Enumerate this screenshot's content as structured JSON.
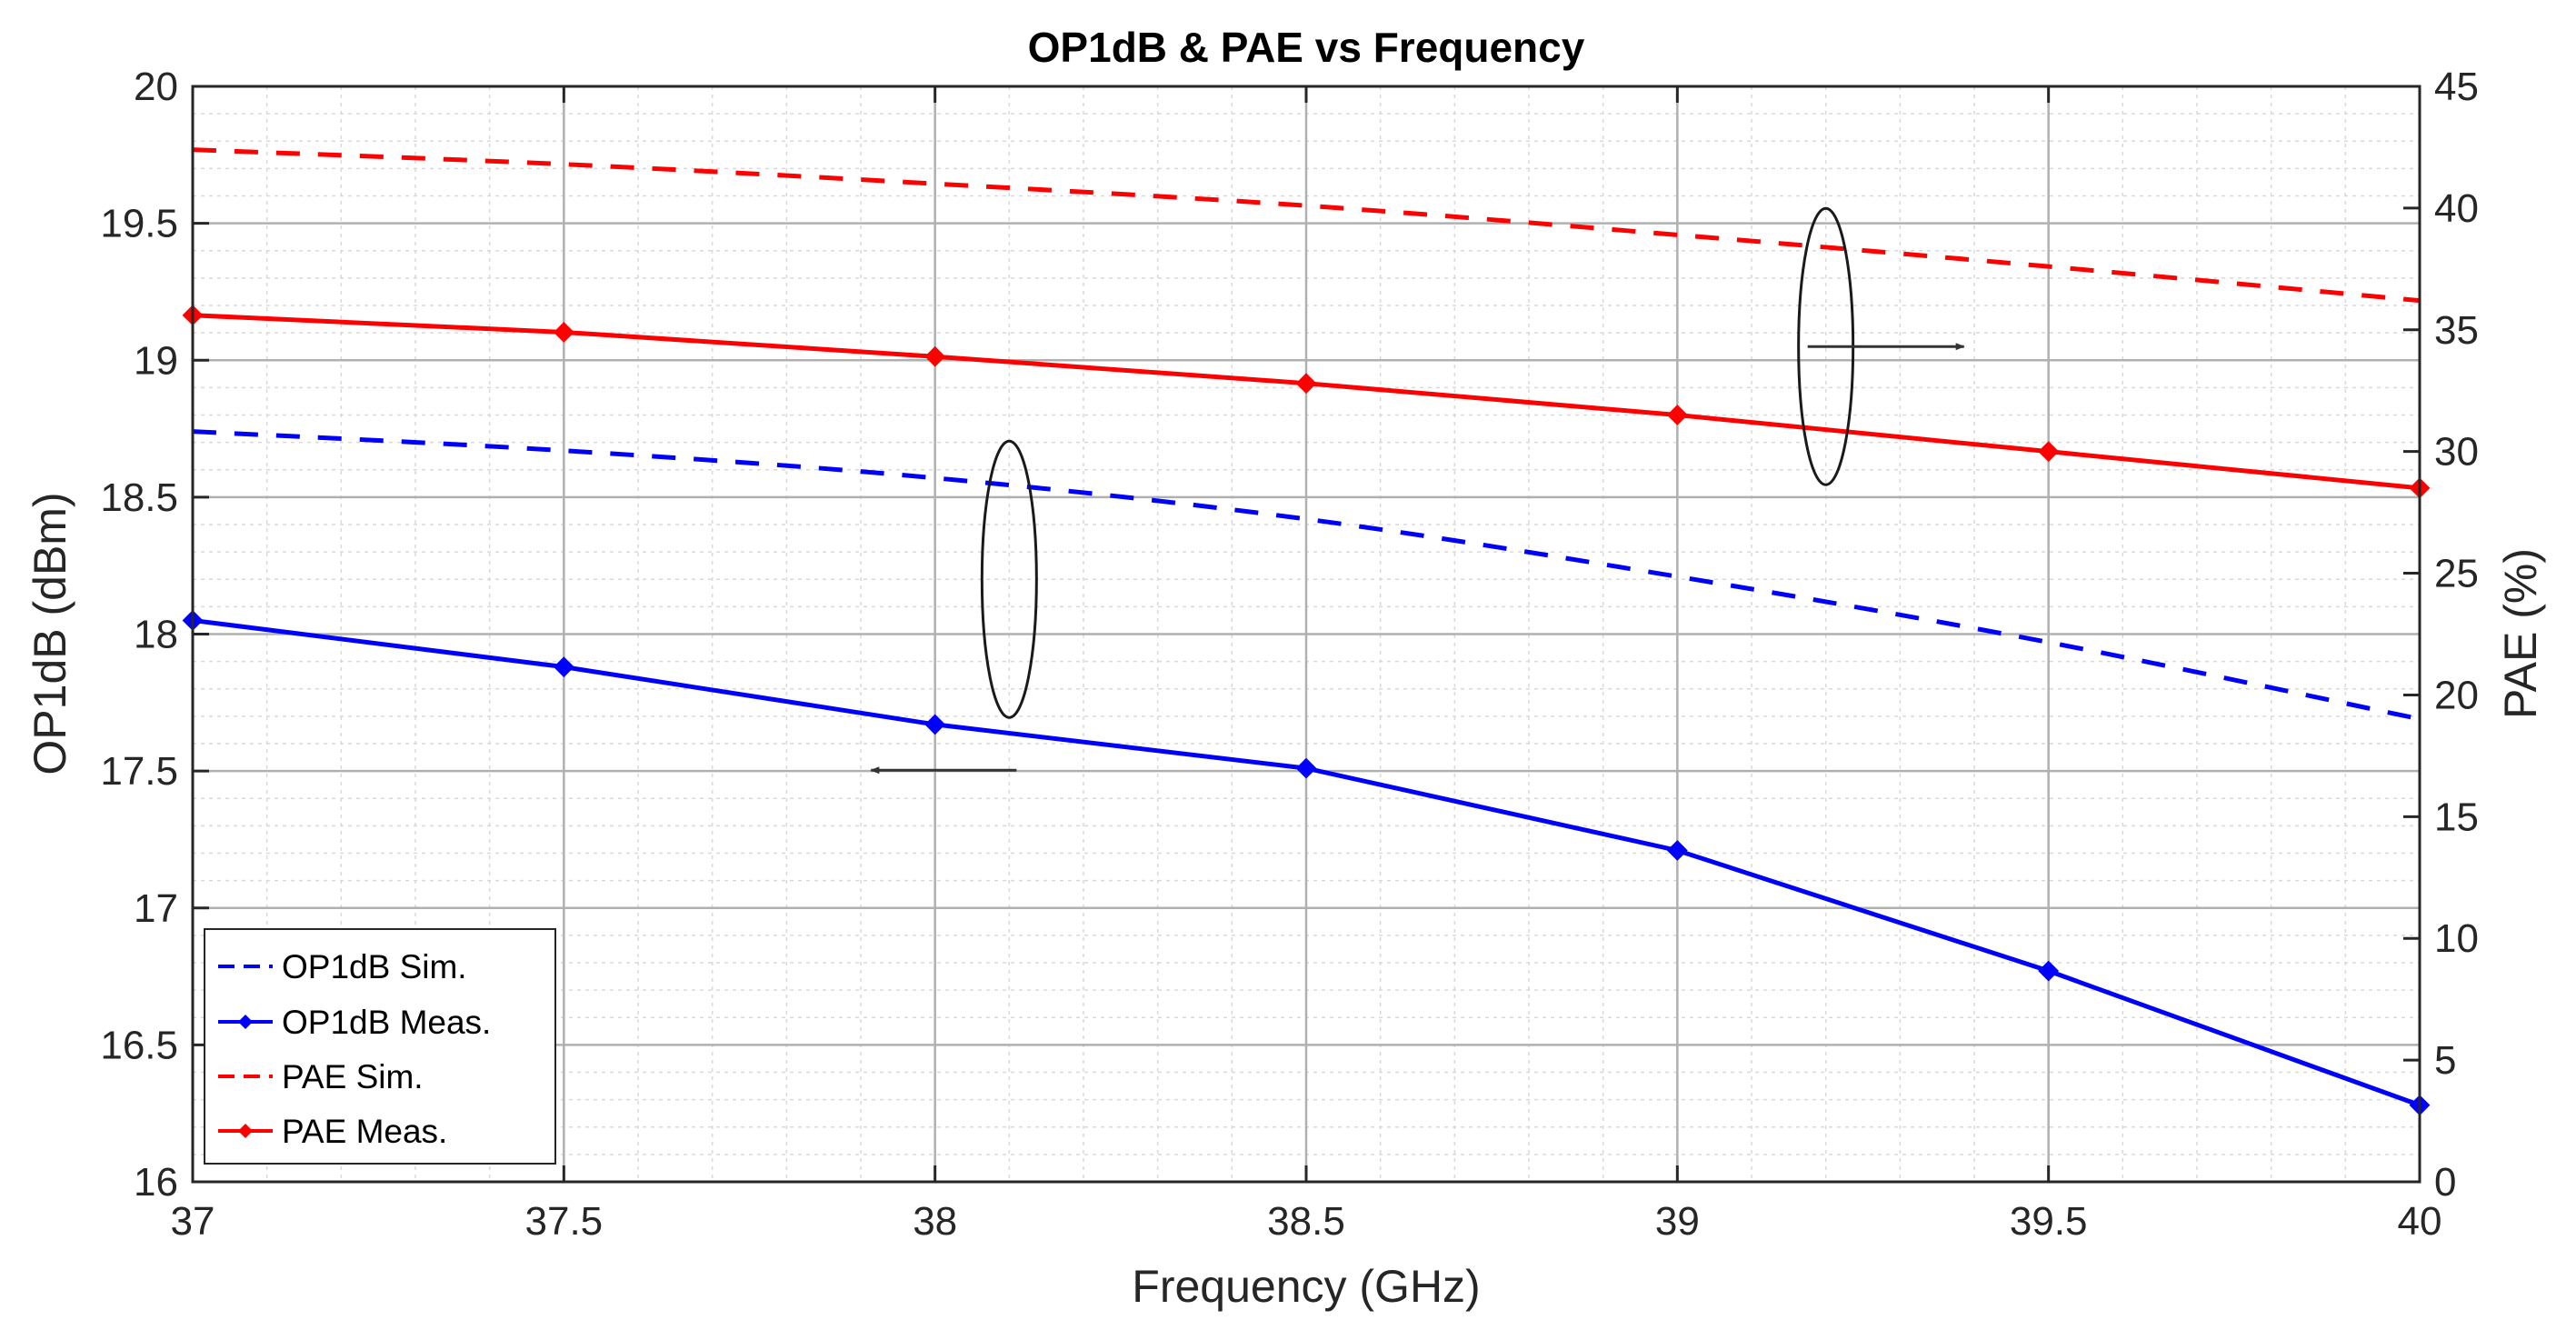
{
  "chart_data": {
    "type": "line",
    "title": "OP1dB & PAE vs Frequency",
    "xlabel": "Frequency (GHz)",
    "ylabel_left": "OP1dB (dBm)",
    "ylabel_right": "PAE (%)",
    "xlim": [
      37,
      40
    ],
    "ylim_left": [
      16,
      20
    ],
    "ylim_right": [
      0,
      45
    ],
    "xticks": [
      37,
      37.5,
      38,
      38.5,
      39,
      39.5,
      40
    ],
    "xtick_labels": [
      "37",
      "37.5",
      "38",
      "38.5",
      "39",
      "39.5",
      "40"
    ],
    "yticks_left": [
      16,
      16.5,
      17,
      17.5,
      18,
      18.5,
      19,
      19.5,
      20
    ],
    "ytick_labels_left": [
      "16",
      "16.5",
      "17",
      "17.5",
      "18",
      "18.5",
      "19",
      "19.5",
      "20"
    ],
    "yticks_right": [
      0,
      5,
      10,
      15,
      20,
      25,
      30,
      35,
      40,
      45
    ],
    "ytick_labels_right": [
      "0",
      "5",
      "10",
      "15",
      "20",
      "25",
      "30",
      "35",
      "40",
      "45"
    ],
    "grid": true,
    "minor_grid": true,
    "legend_position": "bottom-left",
    "series": [
      {
        "name": "OP1dB Sim.",
        "axis": "left",
        "color": "#0000ff",
        "style": "dashed",
        "marker": false,
        "x": [
          37,
          37.5,
          38,
          38.5,
          39,
          39.5,
          40
        ],
        "values": [
          18.74,
          18.67,
          18.57,
          18.42,
          18.21,
          17.97,
          17.69
        ]
      },
      {
        "name": "OP1dB Meas.",
        "axis": "left",
        "color": "#0000ff",
        "style": "solid",
        "marker": true,
        "x": [
          37,
          37.5,
          38,
          38.5,
          39,
          39.5,
          40
        ],
        "values": [
          18.05,
          17.88,
          17.67,
          17.51,
          17.21,
          16.77,
          16.28
        ]
      },
      {
        "name": "PAE Sim.",
        "axis": "right",
        "color": "#ff0000",
        "style": "dashed",
        "marker": false,
        "x": [
          37,
          37.5,
          38,
          38.5,
          39,
          39.5,
          40
        ],
        "values": [
          42.4,
          41.8,
          41.0,
          40.1,
          38.9,
          37.6,
          36.2
        ]
      },
      {
        "name": "PAE Meas.",
        "axis": "right",
        "color": "#ff0000",
        "style": "solid",
        "marker": true,
        "x": [
          37,
          37.5,
          38,
          38.5,
          39,
          39.5,
          40
        ],
        "values": [
          35.6,
          34.9,
          33.9,
          32.8,
          31.5,
          30.0,
          28.5
        ]
      }
    ],
    "annotations": [
      {
        "kind": "ellipse-arrow",
        "target_axis": "right",
        "ellipse_x": 39.2,
        "ellipse_y": 19.05,
        "arrow_direction": "right"
      },
      {
        "kind": "ellipse-arrow",
        "target_axis": "left",
        "ellipse_x": 38.1,
        "ellipse_y": 18.2,
        "arrow_direction": "left"
      }
    ]
  }
}
